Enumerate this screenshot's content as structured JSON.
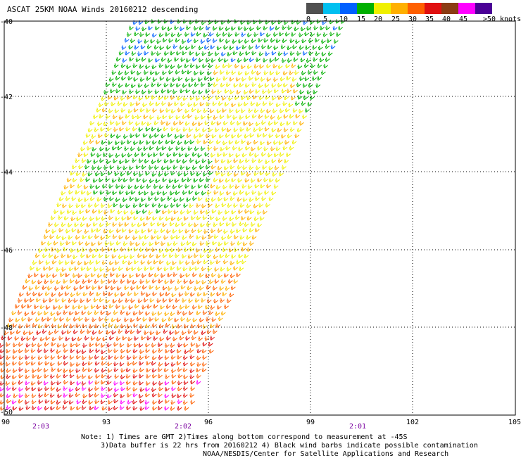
{
  "title": "ASCAT 25KM NOAA Winds 20160212 descending",
  "legend": {
    "labels": [
      "0",
      "5",
      "10",
      "15",
      "20",
      "25",
      "30",
      "35",
      "40",
      "45",
      ">50 knots"
    ],
    "colors": [
      "#505050",
      "#00c0f0",
      "#0060ff",
      "#00b000",
      "#f0f000",
      "#ffb000",
      "#ff6000",
      "#e01010",
      "#8b3c14",
      "#ff00ff",
      "#4b0096"
    ]
  },
  "map": {
    "lon_ticks": [
      "90",
      "93",
      "96",
      "99",
      "102",
      "105"
    ],
    "lat_ticks": [
      "-40",
      "-42",
      "-44",
      "-46",
      "-48",
      "-50"
    ],
    "times": [
      "2:03",
      "2:02",
      "2:01"
    ],
    "time_color": "#7a00a0",
    "grid_color": "#000000"
  },
  "notes": [
    "Note: 1) Times are GMT 2)Times along bottom correspond to measurement at -45S",
    "3)Data buffer is 22 hrs from 20160212 4) Black wind barbs indicate possible contamination",
    "NOAA/NESDIS/Center for Satellite Applications and Research"
  ]
}
